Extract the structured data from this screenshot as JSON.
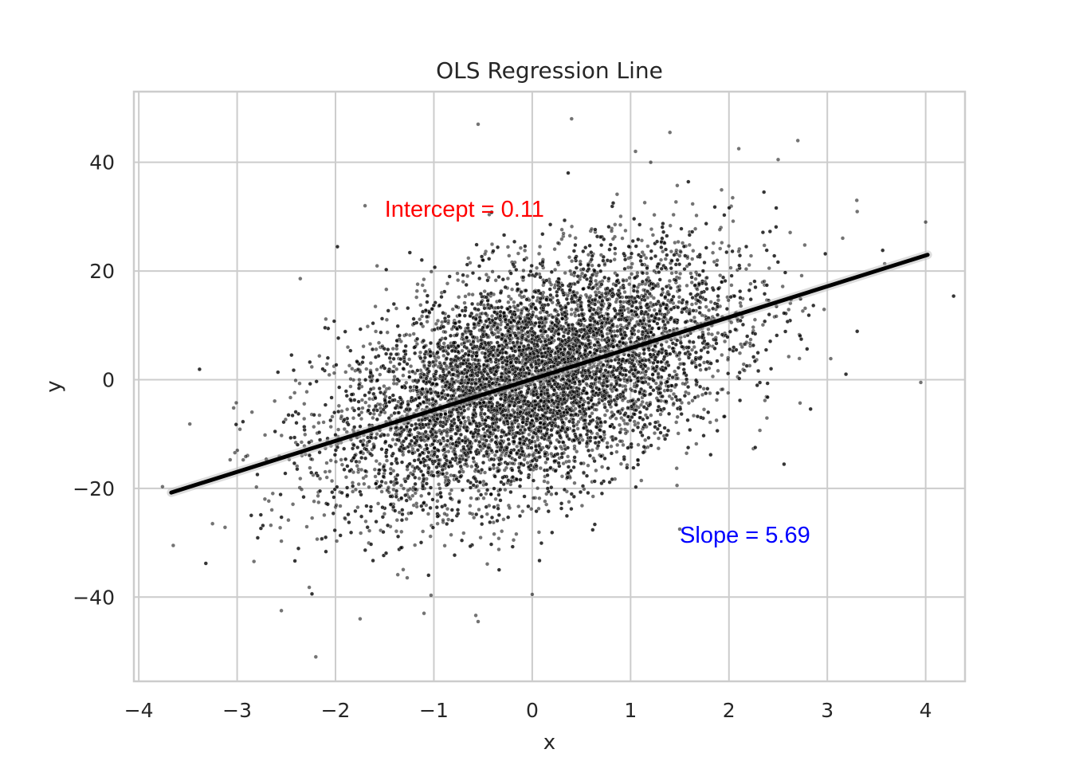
{
  "chart_data": {
    "type": "scatter",
    "title": "OLS Regression Line",
    "xlabel": "x",
    "ylabel": "y",
    "xlim": [
      -4.05,
      4.4
    ],
    "ylim": [
      -55.5,
      53.0
    ],
    "xticks": [
      -4,
      -3,
      -2,
      -1,
      0,
      1,
      2,
      3,
      4
    ],
    "xtick_labels": [
      "−4",
      "−3",
      "−2",
      "−1",
      "0",
      "1",
      "2",
      "3",
      "4"
    ],
    "yticks": [
      -40,
      -20,
      0,
      20,
      40
    ],
    "ytick_labels": [
      "−40",
      "−20",
      "0",
      "20",
      "40"
    ],
    "grid": true,
    "series": [
      {
        "kind": "scatter",
        "color": "#000000",
        "opacity": 0.55,
        "n_points": 10000,
        "distribution": {
          "x_mean": 0.0,
          "x_std": 1.0,
          "intercept": 0.11,
          "slope": 5.69,
          "residual_std": 10.0
        },
        "outliers": [
          [
            -0.55,
            47
          ],
          [
            0.4,
            48
          ],
          [
            1.4,
            45.5
          ],
          [
            2.7,
            44
          ],
          [
            2.1,
            42.5
          ],
          [
            1.05,
            42
          ],
          [
            -1.7,
            32
          ],
          [
            -2.2,
            -51
          ],
          [
            -3.65,
            -30.5
          ],
          [
            3.95,
            -0.5
          ],
          [
            4.0,
            29
          ],
          [
            3.3,
            33
          ],
          [
            -0.55,
            -44.5
          ],
          [
            -1.75,
            -44
          ],
          [
            -2.55,
            -42.5
          ],
          [
            -0.0,
            -39.5
          ],
          [
            -1.1,
            -43
          ],
          [
            1.5,
            -27.5
          ],
          [
            -3.25,
            -26.5
          ],
          [
            2.5,
            40.5
          ]
        ]
      },
      {
        "kind": "line",
        "color": "#000000",
        "x": [
          -3.67,
          4.02
        ],
        "y": [
          -20.77,
          22.98
        ]
      }
    ],
    "annotations": [
      {
        "text": "Intercept = 0.11",
        "x": -1.5,
        "y": 30,
        "color": "#ff0000"
      },
      {
        "text": "Slope = 5.69",
        "x": 1.5,
        "y": -30,
        "color": "#0000ff"
      }
    ]
  }
}
